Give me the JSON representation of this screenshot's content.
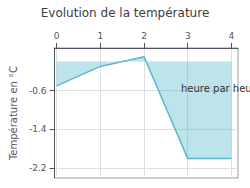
{
  "chart_data": {
    "type": "line",
    "title": "Evolution de la température",
    "xlabel": "heure par heure",
    "ylabel": "Température en °C",
    "x": [
      0,
      1,
      2,
      3,
      4
    ],
    "values": [
      -0.5,
      -0.1,
      0.1,
      -2.0,
      -2.0
    ],
    "color": "#5ab8cc",
    "xlim": [
      -0.05,
      4.15
    ],
    "ylim": [
      -2.4,
      0.28
    ],
    "xticks": [
      0,
      1,
      2,
      3,
      4
    ],
    "yticks": [
      -0.6,
      -1.4,
      -2.2
    ],
    "grid": true
  }
}
